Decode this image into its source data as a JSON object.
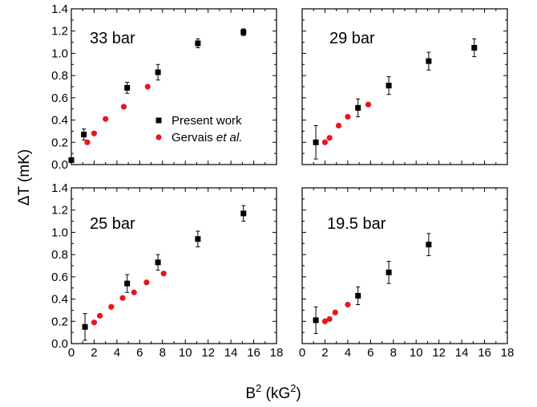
{
  "chart_data": [
    {
      "type": "scatter",
      "title": "33 bar",
      "xlim": [
        0,
        18
      ],
      "ylim": [
        0,
        1.4
      ],
      "legend": {
        "placement": "center-right",
        "entries": [
          {
            "prefix": "Present work",
            "italic": "",
            "suffix": ""
          },
          {
            "prefix": "Gervais ",
            "italic": "et al.",
            "suffix": ""
          }
        ]
      },
      "series": [
        {
          "name": "Present work",
          "marker": "square",
          "color": "#000000",
          "x": [
            0.0,
            1.1,
            4.9,
            7.6,
            11.1,
            15.1
          ],
          "y": [
            0.04,
            0.27,
            0.69,
            0.83,
            1.09,
            1.19
          ],
          "err": [
            0.0,
            0.05,
            0.05,
            0.07,
            0.04,
            0.03
          ]
        },
        {
          "name": "Gervais et al.",
          "marker": "circle",
          "color": "#e8161b",
          "x": [
            1.4,
            2.0,
            3.0,
            4.6,
            6.7
          ],
          "y": [
            0.2,
            0.28,
            0.41,
            0.52,
            0.7
          ]
        }
      ]
    },
    {
      "type": "scatter",
      "title": "29 bar",
      "xlim": [
        0,
        18
      ],
      "ylim": [
        0,
        1.4
      ],
      "series": [
        {
          "name": "Present work",
          "marker": "square",
          "color": "#000000",
          "x": [
            1.2,
            4.9,
            7.6,
            11.1,
            15.1
          ],
          "y": [
            0.2,
            0.51,
            0.71,
            0.93,
            1.05
          ],
          "err": [
            0.15,
            0.08,
            0.08,
            0.08,
            0.08
          ]
        },
        {
          "name": "Gervais et al.",
          "marker": "circle",
          "color": "#e8161b",
          "x": [
            2.0,
            2.4,
            3.2,
            4.0,
            5.8
          ],
          "y": [
            0.2,
            0.24,
            0.35,
            0.43,
            0.54
          ]
        }
      ]
    },
    {
      "type": "scatter",
      "title": "25 bar",
      "xlim": [
        0,
        18
      ],
      "ylim": [
        0,
        1.4
      ],
      "series": [
        {
          "name": "Present work",
          "marker": "square",
          "color": "#000000",
          "x": [
            1.2,
            4.9,
            7.6,
            11.1,
            15.1
          ],
          "y": [
            0.15,
            0.54,
            0.73,
            0.94,
            1.17
          ],
          "err": [
            0.12,
            0.08,
            0.07,
            0.07,
            0.07
          ]
        },
        {
          "name": "Gervais et al.",
          "marker": "circle",
          "color": "#e8161b",
          "x": [
            2.0,
            2.5,
            3.5,
            4.5,
            5.5,
            6.6,
            8.1
          ],
          "y": [
            0.19,
            0.25,
            0.33,
            0.41,
            0.46,
            0.55,
            0.63
          ]
        }
      ]
    },
    {
      "type": "scatter",
      "title": "19.5 bar",
      "xlim": [
        0,
        18
      ],
      "ylim": [
        0,
        1.4
      ],
      "series": [
        {
          "name": "Present work",
          "marker": "square",
          "color": "#000000",
          "x": [
            1.2,
            4.9,
            7.6,
            11.1
          ],
          "y": [
            0.21,
            0.43,
            0.64,
            0.89
          ],
          "err": [
            0.12,
            0.08,
            0.1,
            0.1
          ]
        },
        {
          "name": "Gervais et al.",
          "marker": "circle",
          "color": "#e8161b",
          "x": [
            2.0,
            2.4,
            2.9,
            4.0
          ],
          "y": [
            0.2,
            0.22,
            0.28,
            0.35
          ]
        }
      ]
    }
  ],
  "axes": {
    "ylabel": "ΔT (mK)",
    "xlabel_base": "B",
    "xlabel_sup": "2",
    "xlabel_unit_base": " (kG",
    "xlabel_unit_sup": "2",
    "xlabel_unit_close": ")",
    "xticks": [
      "0",
      "2",
      "4",
      "6",
      "8",
      "10",
      "12",
      "14",
      "16",
      "18"
    ],
    "yticks": [
      "0.0",
      "0.2",
      "0.4",
      "0.6",
      "0.8",
      "1.0",
      "1.2",
      "1.4"
    ]
  },
  "colors": {
    "present": "#000000",
    "gervais": "#e8161b"
  }
}
